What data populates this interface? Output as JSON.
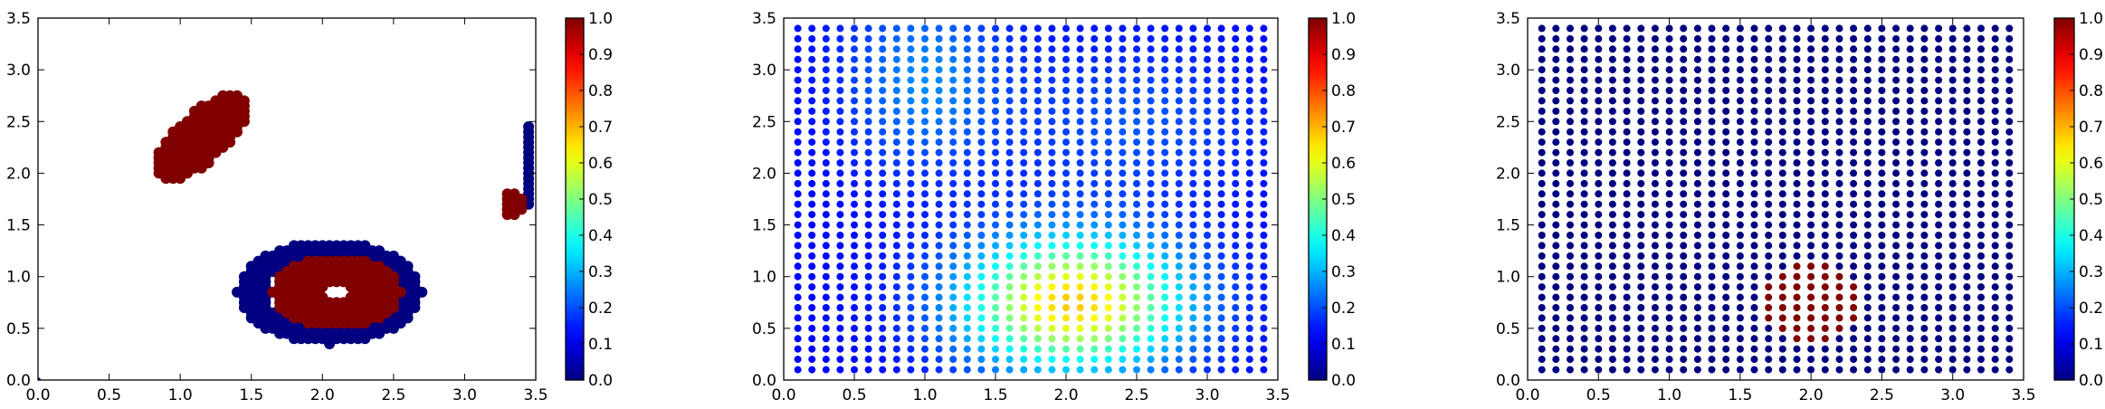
{
  "chart_data": [
    {
      "type": "scatter",
      "title": "",
      "xlabel": "",
      "ylabel": "",
      "xlim": [
        0.0,
        3.5
      ],
      "ylim": [
        0.0,
        3.5
      ],
      "x_ticks": [
        "0.0",
        "0.5",
        "1.0",
        "1.5",
        "2.0",
        "2.5",
        "3.0",
        "3.5"
      ],
      "y_ticks": [
        "0.0",
        "0.5",
        "1.0",
        "1.5",
        "2.0",
        "2.5",
        "3.0",
        "3.5"
      ],
      "colorbar": {
        "range": [
          0.0,
          1.0
        ],
        "colormap": "jet",
        "ticks": [
          "0.0",
          "0.1",
          "0.2",
          "0.3",
          "0.4",
          "0.5",
          "0.6",
          "0.7",
          "0.8",
          "0.9",
          "1.0"
        ]
      },
      "regions": [
        {
          "shape": "ellipse",
          "center": [
            1.15,
            2.35
          ],
          "radii": [
            0.2,
            0.5
          ],
          "rotation_deg": -35,
          "value": 1.0,
          "description": "red elongated blob"
        },
        {
          "shape": "ring",
          "center": [
            2.05,
            0.85
          ],
          "outer_radii": [
            0.65,
            0.5
          ],
          "inner_radii": [
            0.45,
            0.35
          ],
          "value": 0.0,
          "description": "dark blue ring"
        },
        {
          "shape": "ring",
          "center": [
            2.1,
            0.85
          ],
          "outer_radii": [
            0.45,
            0.35
          ],
          "inner_radii": [
            0.12,
            0.08
          ],
          "value": 1.0,
          "description": "red inner ring"
        },
        {
          "shape": "rect",
          "x": [
            3.42,
            3.46
          ],
          "y": [
            1.7,
            2.45
          ],
          "value": 0.0,
          "description": "blue vertical strip"
        },
        {
          "shape": "ellipse",
          "center": [
            3.33,
            1.7
          ],
          "radii": [
            0.08,
            0.15
          ],
          "rotation_deg": 0,
          "value": 1.0,
          "description": "small red blob"
        }
      ]
    },
    {
      "type": "scatter",
      "title": "",
      "xlabel": "",
      "ylabel": "",
      "xlim": [
        0.0,
        3.5
      ],
      "ylim": [
        0.0,
        3.5
      ],
      "x_ticks": [
        "0.0",
        "0.5",
        "1.0",
        "1.5",
        "2.0",
        "2.5",
        "3.0",
        "3.5"
      ],
      "y_ticks": [
        "0.0",
        "0.5",
        "1.0",
        "1.5",
        "2.0",
        "2.5",
        "3.0",
        "3.5"
      ],
      "colorbar": {
        "range": [
          0.0,
          1.0
        ],
        "colormap": "jet",
        "ticks": [
          "0.0",
          "0.1",
          "0.2",
          "0.3",
          "0.4",
          "0.5",
          "0.6",
          "0.7",
          "0.8",
          "0.9",
          "1.0"
        ]
      },
      "grid": {
        "start": 0.1,
        "stop": 3.4,
        "step": 0.1
      },
      "field": {
        "base": 0.13,
        "bumps": [
          {
            "center": [
              2.05,
              0.75
            ],
            "sigma": [
              0.55,
              0.45
            ],
            "amplitude": 0.55
          },
          {
            "center": [
              1.0,
              2.9
            ],
            "sigma": [
              0.4,
              0.6
            ],
            "amplitude": 0.13
          },
          {
            "center": [
              2.5,
              2.5
            ],
            "sigma": [
              0.6,
              0.5
            ],
            "amplitude": 0.08
          }
        ]
      }
    },
    {
      "type": "scatter",
      "title": "",
      "xlabel": "",
      "ylabel": "",
      "xlim": [
        0.0,
        3.5
      ],
      "ylim": [
        0.0,
        3.5
      ],
      "x_ticks": [
        "0.0",
        "0.5",
        "1.0",
        "1.5",
        "2.0",
        "2.5",
        "3.0",
        "3.5"
      ],
      "y_ticks": [
        "0.0",
        "0.5",
        "1.0",
        "1.5",
        "2.0",
        "2.5",
        "3.0",
        "3.5"
      ],
      "colorbar": {
        "range": [
          0.0,
          1.0
        ],
        "colormap": "jet",
        "ticks": [
          "0.0",
          "0.1",
          "0.2",
          "0.3",
          "0.4",
          "0.5",
          "0.6",
          "0.7",
          "0.8",
          "0.9",
          "1.0"
        ]
      },
      "grid": {
        "start": 0.1,
        "stop": 3.4,
        "step": 0.1
      },
      "field": {
        "base": 0.0,
        "discs": [
          {
            "center": [
              2.0,
              0.75
            ],
            "radius": 0.38,
            "value": 1.0
          }
        ]
      }
    }
  ]
}
